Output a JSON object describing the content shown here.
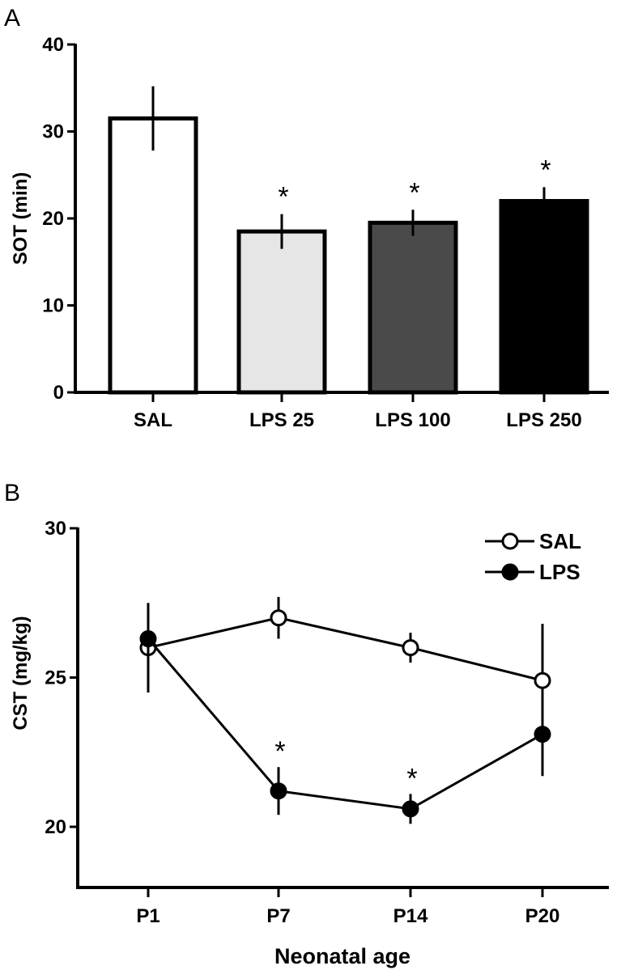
{
  "chart_data": [
    {
      "panel": "A",
      "type": "bar",
      "categories": [
        "SAL",
        "LPS 25",
        "LPS 100",
        "LPS 250"
      ],
      "values": [
        31.5,
        18.5,
        19.5,
        22.0
      ],
      "errors": [
        3.7,
        2.0,
        1.5,
        1.6
      ],
      "significance": [
        "",
        "*",
        "*",
        "*"
      ],
      "bar_colors": [
        "#ffffff",
        "#e6e6e6",
        "#4a4a4a",
        "#000000"
      ],
      "ylabel": "SOT (min)",
      "xlabel": "",
      "ylim": [
        0,
        40
      ],
      "yticks": [
        0,
        10,
        20,
        30,
        40
      ],
      "grid": false
    },
    {
      "panel": "B",
      "type": "line",
      "categories": [
        "P1",
        "P7",
        "P14",
        "P20"
      ],
      "series": [
        {
          "name": "SAL",
          "marker": "open-circle",
          "values": [
            26.0,
            27.0,
            26.0,
            24.9
          ],
          "errors": [
            1.5,
            0.7,
            0.5,
            1.9
          ]
        },
        {
          "name": "LPS",
          "marker": "filled-circle",
          "values": [
            26.3,
            21.2,
            20.6,
            23.1
          ],
          "errors": [
            1.1,
            0.8,
            0.5,
            1.4
          ]
        }
      ],
      "significance": [
        "",
        "*",
        "*",
        ""
      ],
      "ylabel": "CST (mg/kg)",
      "xlabel": "Neonatal age",
      "ylim": [
        18,
        30
      ],
      "yticks": [
        20,
        25,
        30
      ],
      "legend": "top-right",
      "grid": false
    }
  ],
  "panel_labels": [
    "A",
    "B"
  ]
}
